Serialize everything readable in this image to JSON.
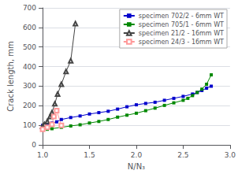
{
  "chart_data": {
    "type": "line",
    "xlabel": "N/N₃",
    "ylabel": "Crack length, mm",
    "xlim": [
      1.0,
      3.0
    ],
    "ylim": [
      0,
      700
    ],
    "xticks": [
      {
        "value": 1.0,
        "label": "1.0"
      },
      {
        "value": 1.5,
        "label": "1.5"
      },
      {
        "value": 2.0,
        "label": "2.0"
      },
      {
        "value": 2.5,
        "label": "2.5"
      },
      {
        "value": 3.0,
        "label": "3.0"
      }
    ],
    "yticks": [
      0,
      100,
      200,
      300,
      400,
      500,
      600,
      700
    ],
    "grid": true,
    "legend": "upper right",
    "series": [
      {
        "name": "specimen 702/2 - 6mm WT",
        "color": "#0000cc",
        "marker": "square",
        "x": [
          1.0,
          1.05,
          1.1,
          1.15,
          1.2,
          1.3,
          1.4,
          1.5,
          1.6,
          1.7,
          1.8,
          1.9,
          2.0,
          2.1,
          2.2,
          2.3,
          2.4,
          2.5,
          2.6,
          2.65,
          2.7,
          2.75,
          2.8
        ],
        "values": [
          100,
          105,
          112,
          118,
          130,
          140,
          148,
          158,
          165,
          172,
          183,
          195,
          205,
          212,
          218,
          228,
          238,
          248,
          260,
          268,
          278,
          290,
          300
        ]
      },
      {
        "name": "specimen 705/1 - 6mm WT",
        "color": "#008800",
        "marker": "square",
        "x": [
          1.0,
          1.05,
          1.1,
          1.2,
          1.3,
          1.4,
          1.5,
          1.6,
          1.7,
          1.8,
          1.9,
          2.0,
          2.1,
          2.2,
          2.3,
          2.4,
          2.5,
          2.55,
          2.6,
          2.65,
          2.7,
          2.75,
          2.8
        ],
        "values": [
          78,
          80,
          83,
          90,
          97,
          103,
          112,
          120,
          130,
          142,
          152,
          162,
          175,
          188,
          202,
          215,
          228,
          238,
          252,
          268,
          285,
          310,
          358
        ]
      },
      {
        "name": "specimen 21/2 - 16mm WT",
        "color": "#444444",
        "marker": "open triangle",
        "x": [
          1.0,
          1.02,
          1.05,
          1.08,
          1.1,
          1.13,
          1.16,
          1.2,
          1.25,
          1.3,
          1.35
        ],
        "values": [
          95,
          105,
          120,
          145,
          165,
          210,
          260,
          310,
          375,
          430,
          620
        ]
      },
      {
        "name": "specimen 24/3 - 16mm WT",
        "color": "#ff9999",
        "marker": "open square",
        "x": [
          1.0,
          1.05,
          1.1,
          1.12,
          1.15,
          1.2
        ],
        "values": [
          80,
          90,
          105,
          145,
          175,
          100
        ]
      }
    ]
  }
}
